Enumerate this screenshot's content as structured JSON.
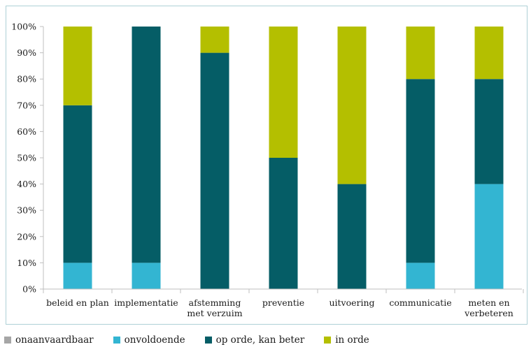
{
  "chart_data": {
    "type": "bar",
    "stacked": true,
    "percent": true,
    "categories": [
      [
        "beleid en plan"
      ],
      [
        "implementatie"
      ],
      [
        "afstemming",
        "met verzuim"
      ],
      [
        "preventie"
      ],
      [
        "uitvoering"
      ],
      [
        "communicatie"
      ],
      [
        "meten en",
        "verbeteren"
      ]
    ],
    "series": [
      {
        "name": "onaanvaardbaar",
        "color": "#a6a6a6",
        "values": [
          0,
          0,
          0,
          0,
          0,
          0,
          0
        ]
      },
      {
        "name": "onvoldoende",
        "color": "#33b5d2",
        "values": [
          10,
          10,
          0,
          0,
          0,
          10,
          40
        ]
      },
      {
        "name": "op orde, kan beter",
        "color": "#055d66",
        "values": [
          60,
          90,
          90,
          50,
          40,
          70,
          40
        ]
      },
      {
        "name": "in orde",
        "color": "#b4bf00",
        "values": [
          30,
          0,
          10,
          50,
          60,
          20,
          20
        ]
      }
    ],
    "ylim": [
      0,
      100
    ],
    "yticks": [
      "0%",
      "10%",
      "20%",
      "30%",
      "40%",
      "50%",
      "60%",
      "70%",
      "80%",
      "90%",
      "100%"
    ],
    "grid": false,
    "legend": "bottom",
    "title": "",
    "xlabel": "",
    "ylabel": ""
  }
}
